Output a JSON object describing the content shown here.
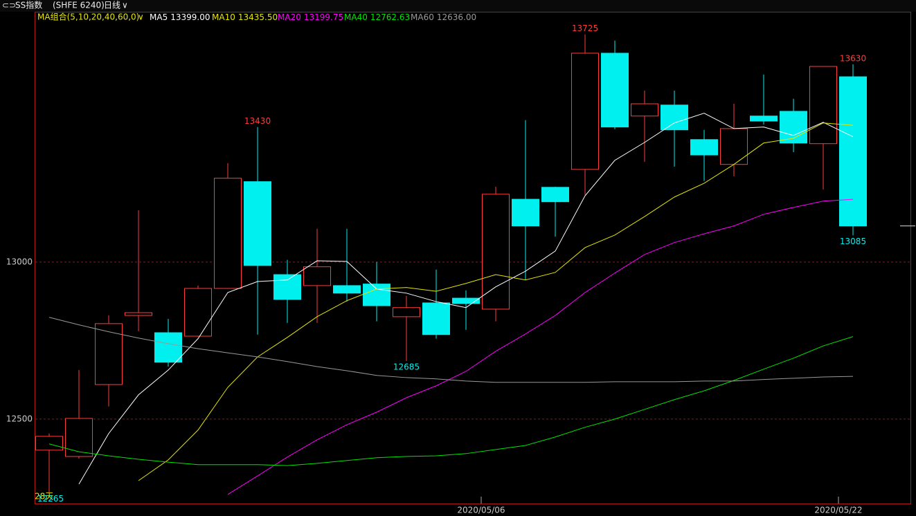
{
  "chart_data": {
    "type": "candlestick",
    "title": "SS指数",
    "subtitle": "(SHFE 6240)",
    "period": "日线",
    "ma_group_label": "MA组合(5,10,20,40,60,0)",
    "corner_text": "28天",
    "categories": [
      null,
      null,
      null,
      null,
      null,
      null,
      null,
      null,
      null,
      null,
      null,
      null,
      null,
      null,
      null,
      "2020/05/06",
      null,
      null,
      null,
      null,
      null,
      null,
      null,
      null,
      null,
      null,
      null,
      "2020/05/22"
    ],
    "open": [
      12401,
      12381,
      12610,
      12830,
      12775,
      12764,
      12916,
      13256,
      12960,
      12925,
      12925,
      12930,
      12826,
      12870,
      12885,
      12850,
      13200,
      13238,
      13295,
      13665,
      13465,
      13500,
      13390,
      13311,
      13465,
      13480,
      13377,
      13590
    ],
    "high": [
      12454,
      12656,
      12830,
      13165,
      12819,
      12925,
      13315,
      13430,
      13007,
      13106,
      13106,
      13000,
      12892,
      12976,
      12910,
      13240,
      13452,
      13240,
      13725,
      13705,
      13546,
      13546,
      13421,
      13504,
      13597,
      13520,
      13623,
      13630
    ],
    "low": [
      12265,
      12374,
      12540,
      12780,
      12667,
      12762,
      12916,
      12769,
      12806,
      12806,
      12874,
      12811,
      12685,
      12756,
      12784,
      12811,
      12943,
      13081,
      13214,
      13423,
      13319,
      13304,
      13258,
      13273,
      13438,
      13350,
      13231,
      13085
    ],
    "close": [
      12445,
      12502,
      12804,
      12839,
      12681,
      12916,
      13267,
      12989,
      12881,
      12985,
      12901,
      12861,
      12855,
      12769,
      12868,
      13216,
      13115,
      13192,
      13665,
      13430,
      13504,
      13421,
      13341,
      13425,
      13449,
      13379,
      13623,
      13115
    ],
    "labeled_highs": [
      7,
      18,
      27
    ],
    "labeled_lows": [
      0,
      12,
      27
    ],
    "up_color": "#ff3c3c",
    "down_color": "#00f0f0",
    "series": [
      {
        "name": "MA5",
        "legend_value": "13399.00",
        "color": "#ffffff",
        "values": [
          null,
          12293,
          12454,
          12577,
          12656,
          12756,
          12903,
          12938,
          12943,
          13004,
          13002,
          12914,
          12901,
          12874,
          12855,
          12921,
          12971,
          13035,
          13211,
          13324,
          13381,
          13443,
          13474,
          13425,
          13430,
          13403,
          13445,
          13399
        ]
      },
      {
        "name": "MA10",
        "legend_value": "13435.50",
        "color": "#e6e600",
        "values": [
          null,
          null,
          null,
          12304,
          12370,
          12465,
          12601,
          12698,
          12760,
          12826,
          12877,
          12914,
          12919,
          12907,
          12932,
          12960,
          12943,
          12967,
          13046,
          13086,
          13145,
          13207,
          13251,
          13311,
          13379,
          13394,
          13443,
          13435.5
        ]
      },
      {
        "name": "MA20",
        "legend_value": "13199.75",
        "color": "#ff00ff",
        "values": [
          null,
          null,
          null,
          null,
          null,
          null,
          12260,
          12319,
          12379,
          12434,
          12482,
          12522,
          12568,
          12606,
          12652,
          12716,
          12771,
          12830,
          12903,
          12965,
          13024,
          13062,
          13090,
          13115,
          13152,
          13174,
          13194,
          13199.75
        ]
      },
      {
        "name": "MA40",
        "legend_value": "12762.63",
        "color": "#00e600",
        "values": [
          12421,
          12396,
          12383,
          12372,
          12363,
          12355,
          12355,
          12355,
          12352,
          12359,
          12368,
          12377,
          12381,
          12383,
          12390,
          12403,
          12416,
          12443,
          12474,
          12500,
          12531,
          12562,
          12590,
          12623,
          12659,
          12694,
          12733,
          12762.63
        ]
      },
      {
        "name": "MA60",
        "legend_value": "12636.00",
        "color": "#9a9a9a",
        "values": [
          12824,
          12800,
          12778,
          12758,
          12740,
          12724,
          12711,
          12698,
          12683,
          12667,
          12654,
          12639,
          12632,
          12628,
          12621,
          12617,
          12617,
          12617,
          12617,
          12619,
          12619,
          12619,
          12621,
          12621,
          12626,
          12630,
          12634,
          12636
        ]
      }
    ],
    "ylim": [
      12231,
      13797
    ],
    "yticks": [
      12500,
      13000
    ],
    "grid": true
  }
}
